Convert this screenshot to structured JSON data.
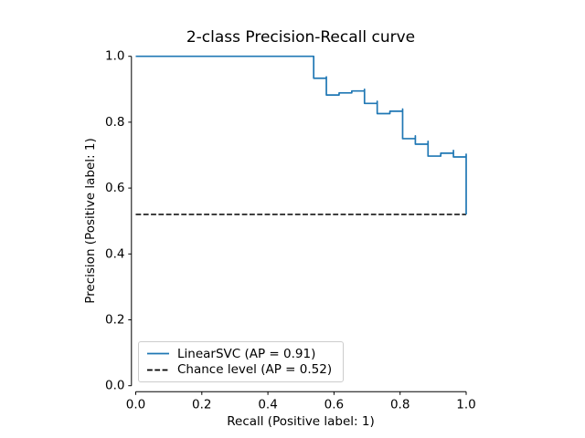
{
  "figure": {
    "title": "2-class Precision-Recall curve",
    "xlabel": "Recall (Positive label: 1)",
    "ylabel": "Precision (Positive label: 1)",
    "x_tick_labels": [
      "0.0",
      "0.2",
      "0.4",
      "0.6",
      "0.8",
      "1.0"
    ],
    "y_tick_labels": [
      "0.0",
      "0.2",
      "0.4",
      "0.6",
      "0.8",
      "1.0"
    ],
    "background_color": "#ffffff",
    "spine_color": "#000000",
    "text_color": "#000000"
  },
  "chart_data": {
    "type": "line",
    "title": "2-class Precision-Recall curve",
    "xlabel": "Recall (Positive label: 1)",
    "ylabel": "Precision (Positive label: 1)",
    "xlim": [
      0.0,
      1.0
    ],
    "ylim": [
      0.0,
      1.0
    ],
    "grid": false,
    "legend_position": "lower left",
    "series": [
      {
        "name": "LinearSVC (AP = 0.91)",
        "color": "#1f77b4",
        "line_style": "solid",
        "drawstyle": "steps-post",
        "points": [
          [
            0.0,
            1.0
          ],
          [
            0.5385,
            1.0
          ],
          [
            0.5385,
            0.9333
          ],
          [
            0.5769,
            0.9375
          ],
          [
            0.5769,
            0.8824
          ],
          [
            0.6154,
            0.8889
          ],
          [
            0.6538,
            0.8947
          ],
          [
            0.6923,
            0.9
          ],
          [
            0.6923,
            0.8571
          ],
          [
            0.7308,
            0.8636
          ],
          [
            0.7308,
            0.8261
          ],
          [
            0.7692,
            0.8333
          ],
          [
            0.8077,
            0.84
          ],
          [
            0.8077,
            0.75
          ],
          [
            0.8462,
            0.7586
          ],
          [
            0.8462,
            0.7333
          ],
          [
            0.8846,
            0.7419
          ],
          [
            0.8846,
            0.697
          ],
          [
            0.9231,
            0.7059
          ],
          [
            0.9615,
            0.7143
          ],
          [
            0.9615,
            0.6944
          ],
          [
            1.0,
            0.7027
          ],
          [
            1.0,
            0.52
          ]
        ]
      },
      {
        "name": "Chance level (AP = 0.52)",
        "color": "#000000",
        "line_style": "dashed",
        "drawstyle": "default",
        "points": [
          [
            0.0,
            0.52
          ],
          [
            1.0,
            0.52
          ]
        ]
      }
    ]
  },
  "legend": {
    "border_color": "#cccccc"
  }
}
